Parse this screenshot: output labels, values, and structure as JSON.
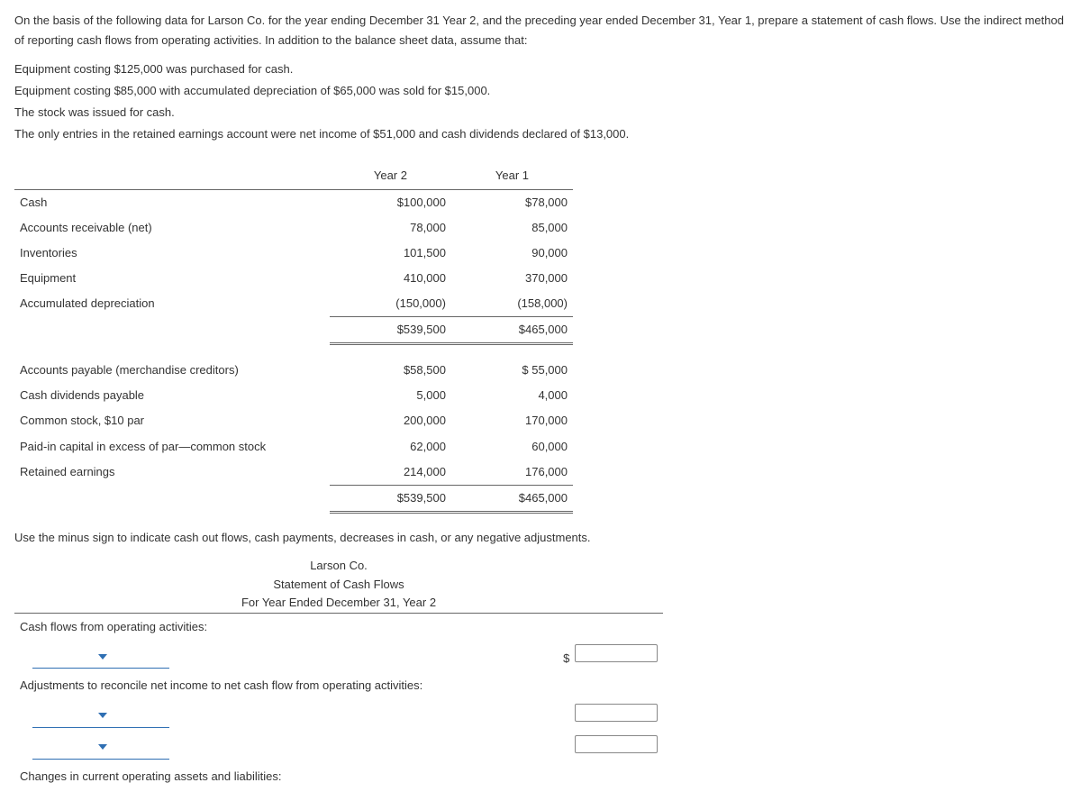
{
  "intro": "On the basis of the following data for Larson Co. for the year ending December 31 Year 2, and the preceding year ended December 31, Year 1, prepare a statement of cash flows. Use the indirect method of reporting cash flows from operating activities. In addition to the balance sheet data, assume that:",
  "bullets": [
    "Equipment costing $125,000 was purchased for cash.",
    "Equipment costing $85,000 with accumulated depreciation of $65,000 was sold for $15,000.",
    "The stock was issued for cash.",
    "The only entries in the retained earnings account were net income of $51,000 and cash dividends declared of $13,000."
  ],
  "balance_sheet": {
    "headers": {
      "label": "",
      "y2": "Year 2",
      "y1": "Year 1"
    },
    "assets": [
      {
        "label": "Cash",
        "y2": "$100,000",
        "y1": "$78,000"
      },
      {
        "label": "Accounts receivable (net)",
        "y2": "78,000",
        "y1": "85,000"
      },
      {
        "label": "Inventories",
        "y2": "101,500",
        "y1": "90,000"
      },
      {
        "label": "Equipment",
        "y2": "410,000",
        "y1": "370,000"
      },
      {
        "label": "Accumulated depreciation",
        "y2": "(150,000)",
        "y1": "(158,000)"
      }
    ],
    "assets_total": {
      "y2": "$539,500",
      "y1": "$465,000"
    },
    "liab_eq": [
      {
        "label": "Accounts payable (merchandise creditors)",
        "y2": "$58,500",
        "y1": "$ 55,000"
      },
      {
        "label": "Cash dividends payable",
        "y2": "5,000",
        "y1": "4,000"
      },
      {
        "label": "Common stock, $10 par",
        "y2": "200,000",
        "y1": "170,000"
      },
      {
        "label": "Paid-in capital in excess of par—common stock",
        "y2": "62,000",
        "y1": "60,000"
      },
      {
        "label": "Retained earnings",
        "y2": "214,000",
        "y1": "176,000"
      }
    ],
    "liab_eq_total": {
      "y2": "$539,500",
      "y1": "$465,000"
    }
  },
  "note": "Use the minus sign to indicate cash out flows, cash payments, decreases in cash, or any negative adjustments.",
  "statement": {
    "company": "Larson Co.",
    "title": "Statement of Cash Flows",
    "period": "For Year Ended December 31, Year 2",
    "rows": {
      "r1": "Cash flows from operating activities:",
      "r2_dollar": "$",
      "r3": "Adjustments to reconcile net income to net cash flow from operating activities:",
      "r6": "Changes in current operating assets and liabilities:"
    }
  }
}
